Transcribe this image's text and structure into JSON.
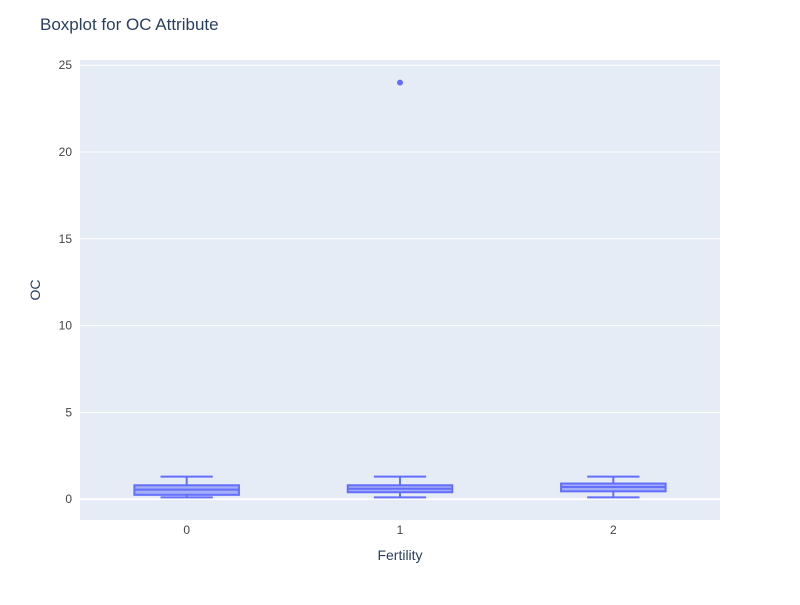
{
  "chart_data": {
    "type": "box",
    "title": "Boxplot for OC Attribute",
    "xlabel": "Fertility",
    "ylabel": "OC",
    "categories": [
      "0",
      "1",
      "2"
    ],
    "ylim": [
      -1.2,
      25.3
    ],
    "yticks": [
      0,
      5,
      10,
      15,
      20,
      25
    ],
    "grid": true,
    "legend": "none",
    "boxes": [
      {
        "category": "0",
        "min": 0.1,
        "q1": 0.25,
        "median": 0.55,
        "q3": 0.8,
        "max": 1.3,
        "outliers": []
      },
      {
        "category": "1",
        "min": 0.1,
        "q1": 0.4,
        "median": 0.6,
        "q3": 0.8,
        "max": 1.3,
        "outliers": [
          24
        ]
      },
      {
        "category": "2",
        "min": 0.1,
        "q1": 0.45,
        "median": 0.7,
        "q3": 0.9,
        "max": 1.3,
        "outliers": []
      }
    ],
    "colors": {
      "box_line": "#636efa",
      "box_fill": "rgba(99,110,250,0.5)",
      "plot_bg": "#e5ecf6",
      "grid": "#ffffff",
      "text": "#2a3f5f",
      "tick_text": "#444444"
    }
  }
}
